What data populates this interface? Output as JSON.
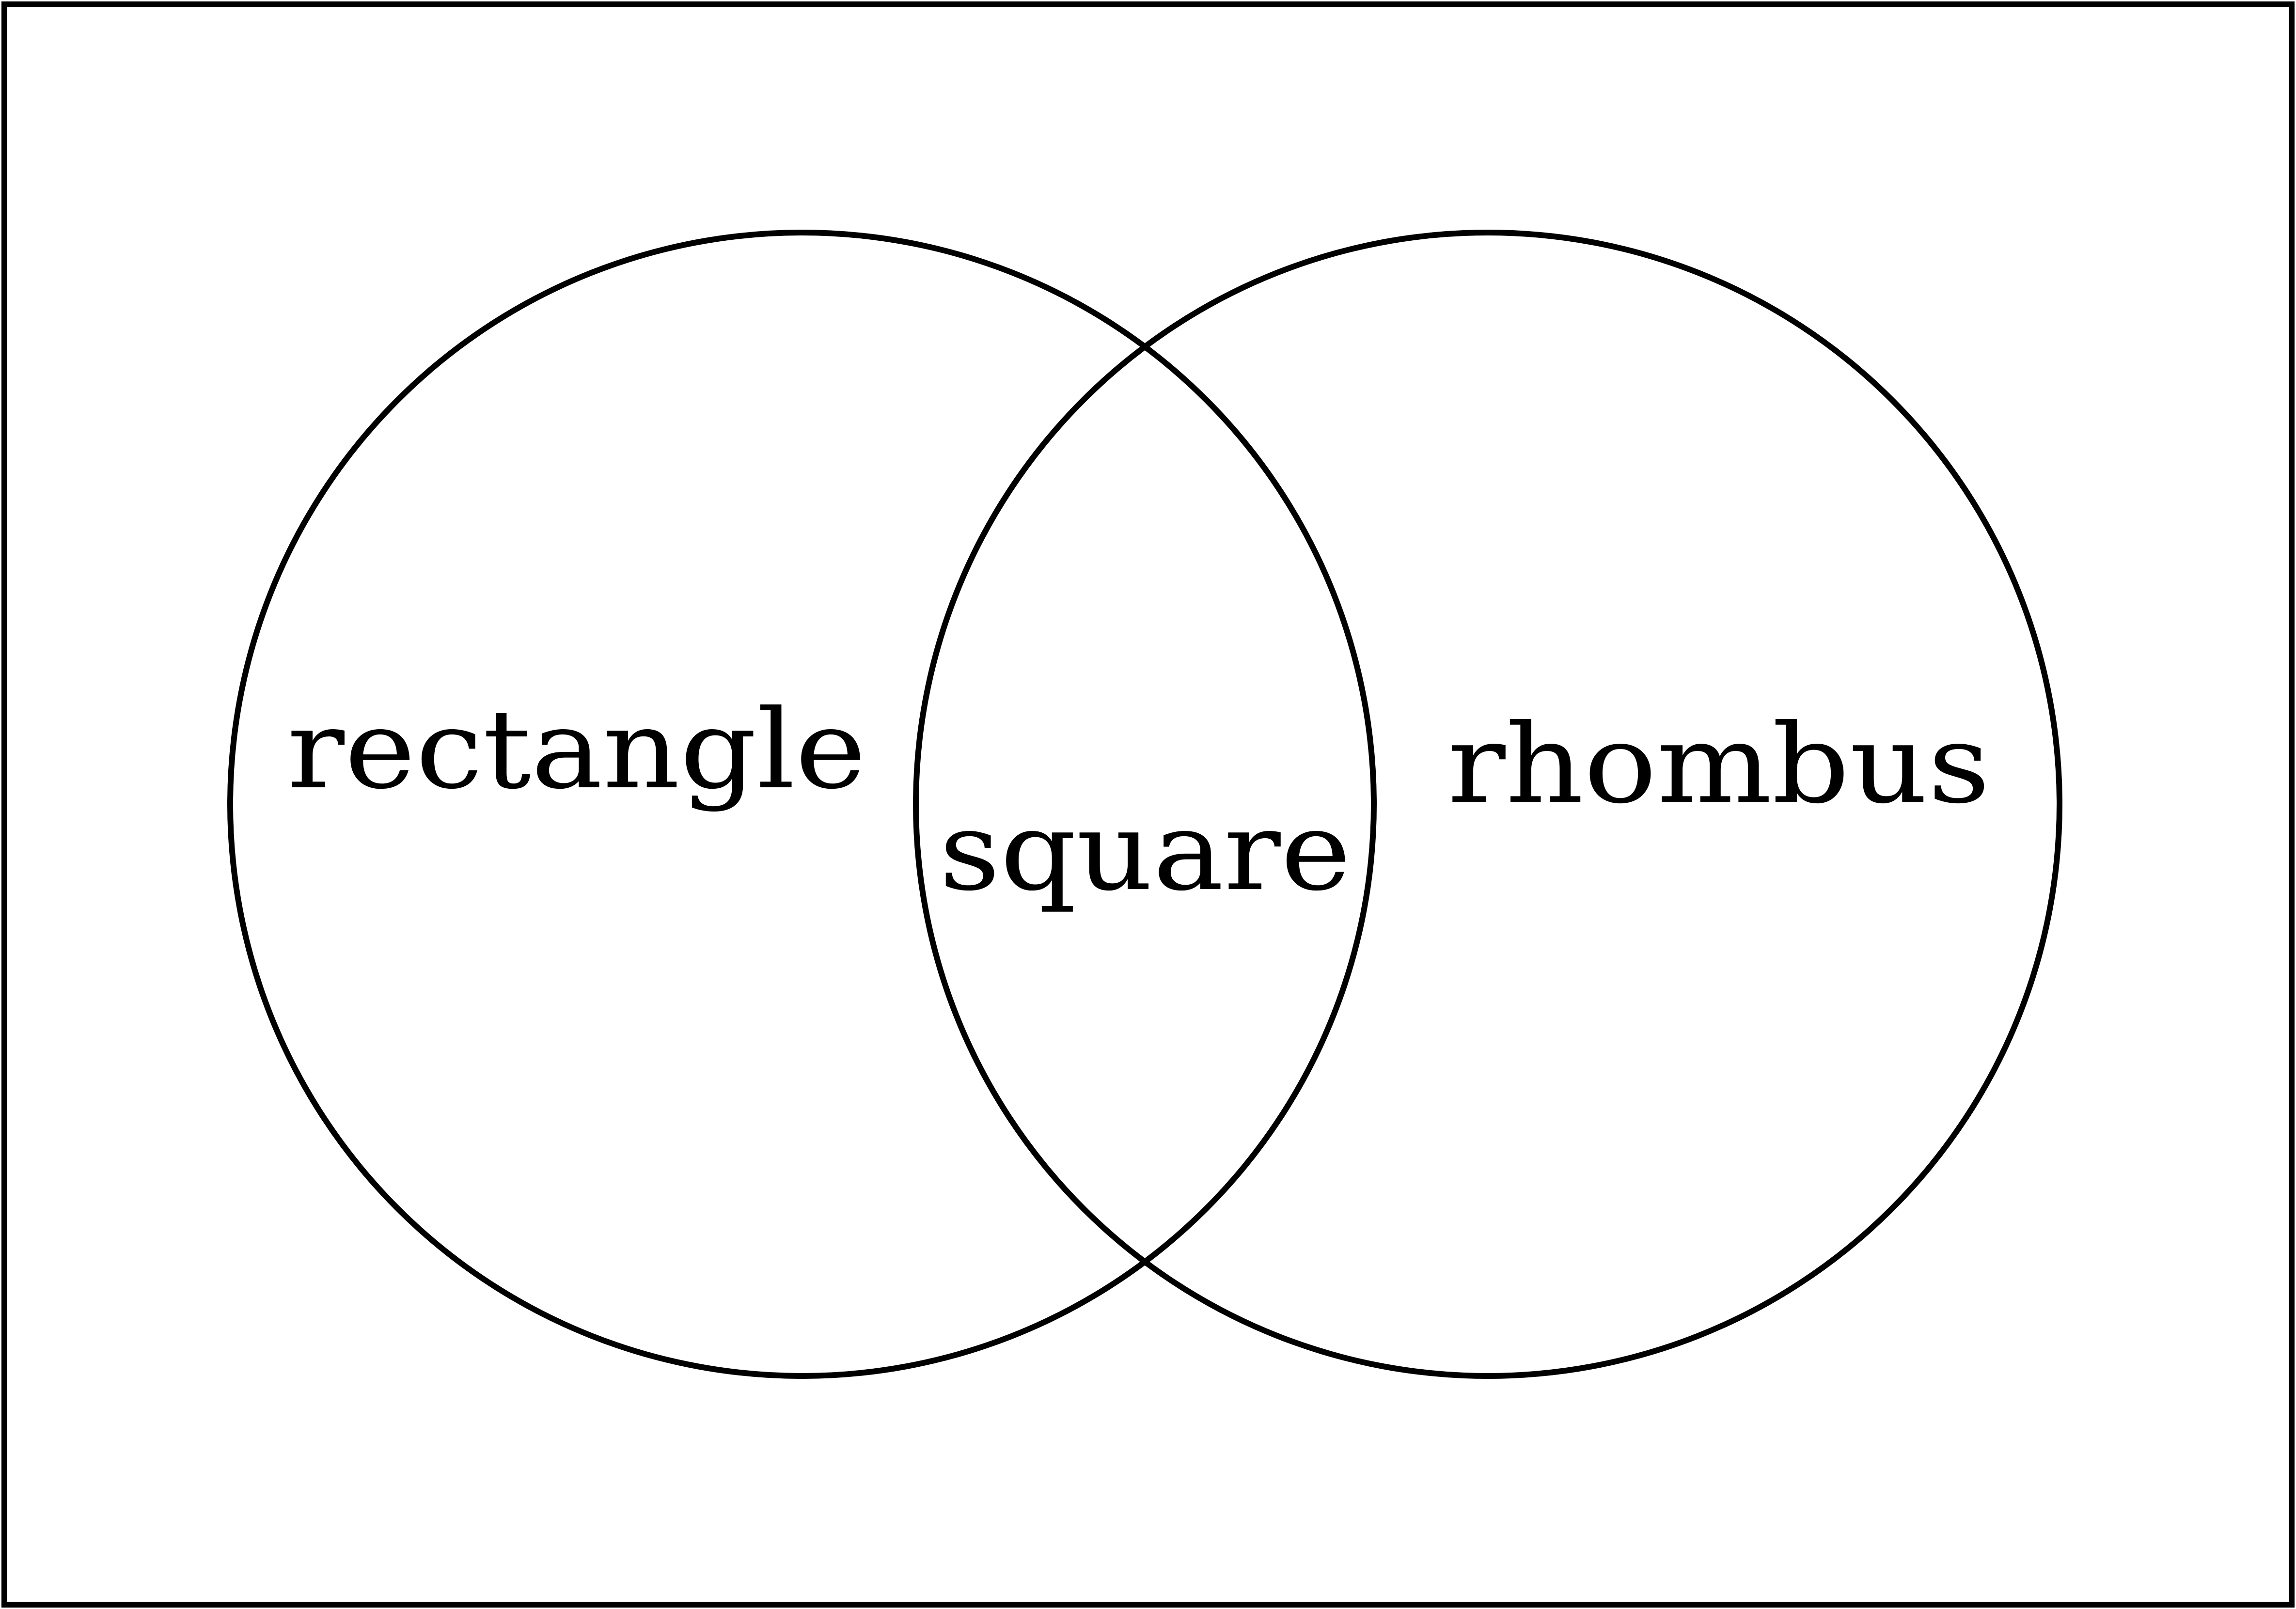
{
  "diagram": {
    "type": "venn",
    "sets": [
      {
        "key": "left",
        "label": "rectangle"
      },
      {
        "key": "right",
        "label": "rhombus"
      }
    ],
    "intersection": {
      "label": "square"
    }
  },
  "colors": {
    "background": "#ffffff",
    "stroke": "#000000",
    "text": "#000000"
  }
}
